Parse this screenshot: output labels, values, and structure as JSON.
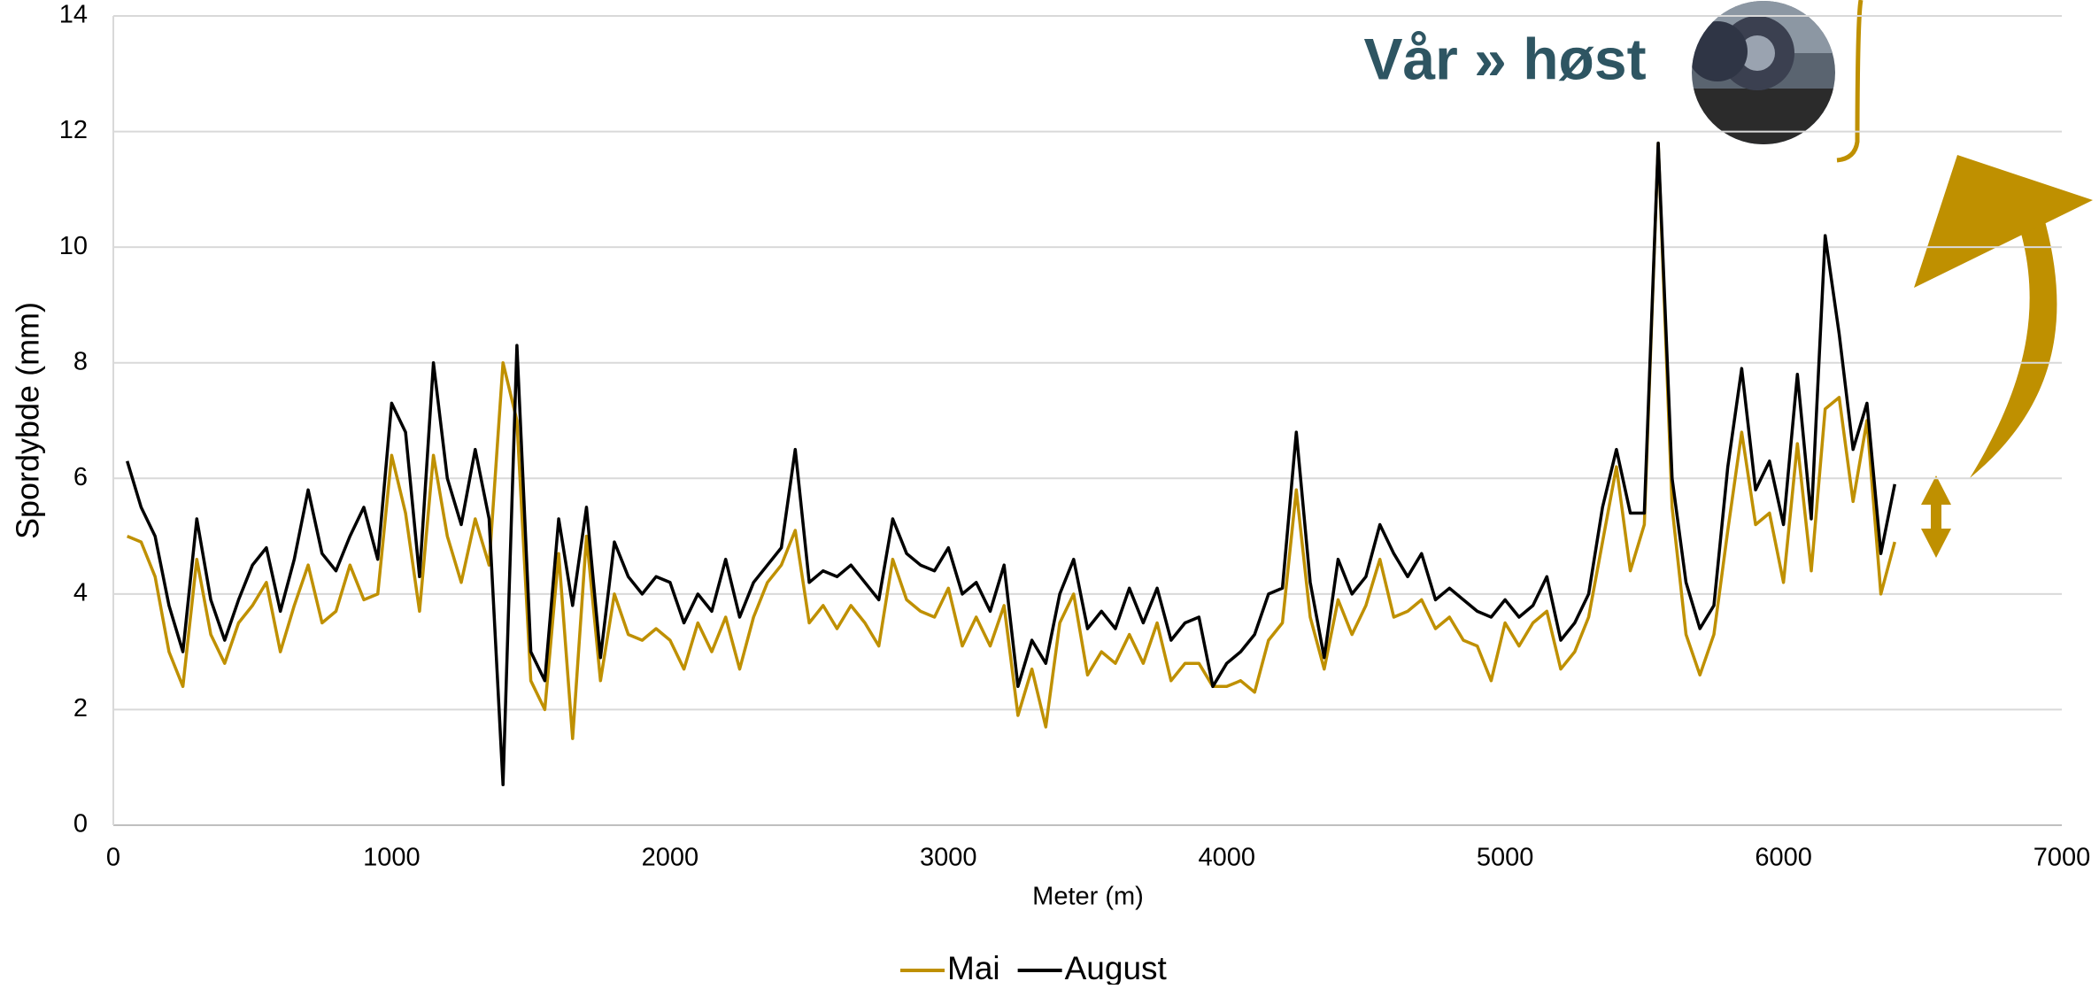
{
  "chart_data": {
    "type": "line",
    "title": "Vår » høst",
    "x_label": "Meter (m)",
    "y_label": "Spordybde (mm)",
    "x": [
      50,
      100,
      150,
      200,
      250,
      300,
      350,
      400,
      450,
      500,
      550,
      600,
      650,
      700,
      750,
      800,
      850,
      900,
      950,
      1000,
      1050,
      1100,
      1150,
      1200,
      1250,
      1300,
      1350,
      1400,
      1450,
      1500,
      1550,
      1600,
      1650,
      1700,
      1750,
      1800,
      1850,
      1900,
      1950,
      2000,
      2050,
      2100,
      2150,
      2200,
      2250,
      2300,
      2350,
      2400,
      2450,
      2500,
      2550,
      2600,
      2650,
      2700,
      2750,
      2800,
      2850,
      2900,
      2950,
      3000,
      3050,
      3100,
      3150,
      3200,
      3250,
      3300,
      3350,
      3400,
      3450,
      3500,
      3550,
      3600,
      3650,
      3700,
      3750,
      3800,
      3850,
      3900,
      3950,
      4000,
      4050,
      4100,
      4150,
      4200,
      4250,
      4300,
      4350,
      4400,
      4450,
      4500,
      4550,
      4600,
      4650,
      4700,
      4750,
      4800,
      4850,
      4900,
      4950,
      5000,
      5050,
      5100,
      5150,
      5200,
      5250,
      5300,
      5350,
      5400,
      5450,
      5500,
      5550,
      5600,
      5650,
      5700,
      5750,
      5800,
      5850,
      5900,
      5950,
      6000,
      6050,
      6100,
      6150,
      6200,
      6250,
      6300,
      6350,
      6400
    ],
    "series": [
      {
        "name": "Mai",
        "color": "#bf9000",
        "values": [
          5.0,
          4.9,
          4.3,
          3.0,
          2.4,
          4.6,
          3.3,
          2.8,
          3.5,
          3.8,
          4.2,
          3.0,
          3.8,
          4.5,
          3.5,
          3.7,
          4.5,
          3.9,
          4.0,
          6.4,
          5.4,
          3.7,
          6.4,
          5.0,
          4.2,
          5.3,
          4.5,
          8.0,
          7.0,
          2.5,
          2.0,
          4.7,
          1.5,
          5.0,
          2.5,
          4.0,
          3.3,
          3.2,
          3.4,
          3.2,
          2.7,
          3.5,
          3.0,
          3.6,
          2.7,
          3.6,
          4.2,
          4.5,
          5.1,
          3.5,
          3.8,
          3.4,
          3.8,
          3.5,
          3.1,
          4.6,
          3.9,
          3.7,
          3.6,
          4.1,
          3.1,
          3.6,
          3.1,
          3.8,
          1.9,
          2.7,
          1.7,
          3.5,
          4.0,
          2.6,
          3.0,
          2.8,
          3.3,
          2.8,
          3.5,
          2.5,
          2.8,
          2.8,
          2.4,
          2.4,
          2.5,
          2.3,
          3.2,
          3.5,
          5.8,
          3.6,
          2.7,
          3.9,
          3.3,
          3.8,
          4.6,
          3.6,
          3.7,
          3.9,
          3.4,
          3.6,
          3.2,
          3.1,
          2.5,
          3.5,
          3.1,
          3.5,
          3.7,
          2.7,
          3.0,
          3.6,
          4.9,
          6.2,
          4.4,
          5.2,
          11.8,
          5.5,
          3.3,
          2.6,
          3.3,
          5.1,
          6.8,
          5.2,
          5.4,
          4.2,
          6.6,
          4.4,
          7.2,
          7.4,
          5.6,
          7.0,
          4.0,
          4.9
        ]
      },
      {
        "name": "August",
        "color": "#000000",
        "values": [
          6.3,
          5.5,
          5.0,
          3.8,
          3.0,
          5.3,
          3.9,
          3.2,
          3.9,
          4.5,
          4.8,
          3.7,
          4.6,
          5.8,
          4.7,
          4.4,
          5.0,
          5.5,
          4.6,
          7.3,
          6.8,
          4.3,
          8.0,
          6.0,
          5.2,
          6.5,
          5.3,
          0.7,
          8.3,
          3.0,
          2.5,
          5.3,
          3.8,
          5.5,
          2.9,
          4.9,
          4.3,
          4.0,
          4.3,
          4.2,
          3.5,
          4.0,
          3.7,
          4.6,
          3.6,
          4.2,
          4.5,
          4.8,
          6.5,
          4.2,
          4.4,
          4.3,
          4.5,
          4.2,
          3.9,
          5.3,
          4.7,
          4.5,
          4.4,
          4.8,
          4.0,
          4.2,
          3.7,
          4.5,
          2.4,
          3.2,
          2.8,
          4.0,
          4.6,
          3.4,
          3.7,
          3.4,
          4.1,
          3.5,
          4.1,
          3.2,
          3.5,
          3.6,
          2.4,
          2.8,
          3.0,
          3.3,
          4.0,
          4.1,
          6.8,
          4.2,
          2.9,
          4.6,
          4.0,
          4.3,
          5.2,
          4.7,
          4.3,
          4.7,
          3.9,
          4.1,
          3.9,
          3.7,
          3.6,
          3.9,
          3.6,
          3.8,
          4.3,
          3.2,
          3.5,
          4.0,
          5.5,
          6.5,
          5.4,
          5.4,
          11.8,
          6.0,
          4.2,
          3.4,
          3.8,
          6.2,
          7.9,
          5.8,
          6.3,
          5.2,
          7.8,
          5.3,
          10.2,
          8.5,
          6.5,
          7.3,
          4.7,
          5.9
        ]
      }
    ],
    "xlim": [
      0,
      7000
    ],
    "xticks": [
      0,
      1000,
      2000,
      3000,
      4000,
      5000,
      6000,
      7000
    ],
    "ylim": [
      0,
      14
    ],
    "yticks": [
      0,
      2,
      4,
      6,
      8,
      10,
      12,
      14
    ],
    "grid": true,
    "legend": "bottom"
  }
}
